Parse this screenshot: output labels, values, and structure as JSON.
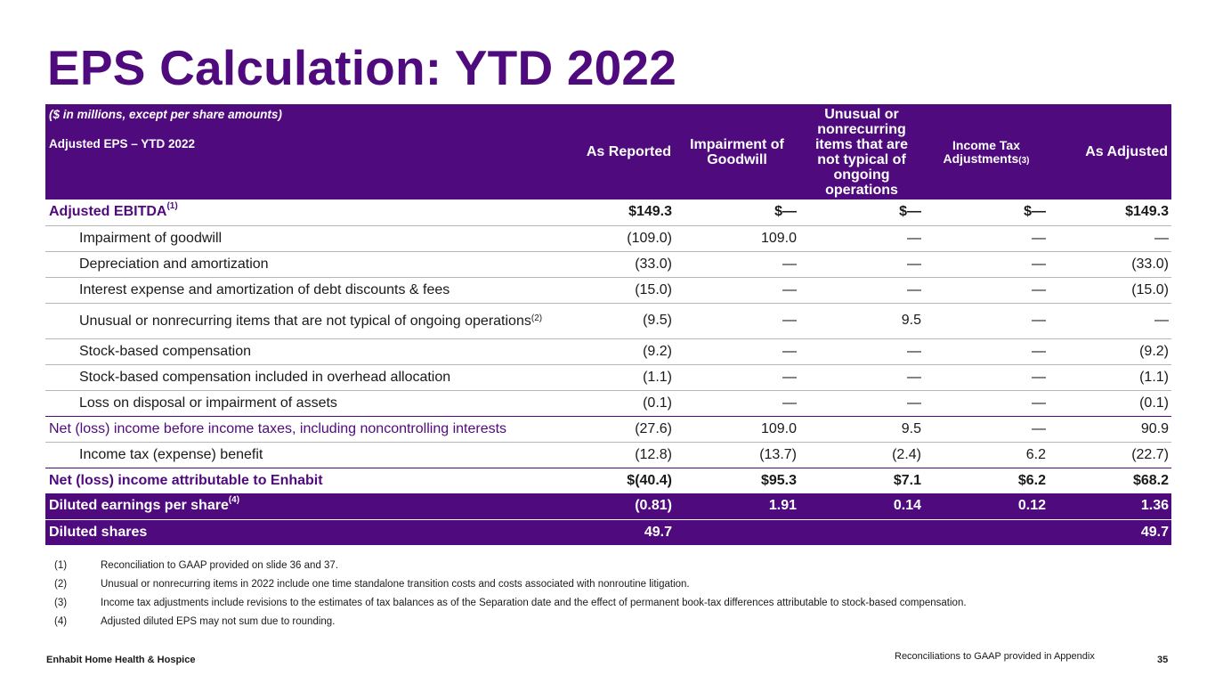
{
  "title": "EPS Calculation: YTD 2022",
  "table": {
    "units_note": "($ in millions, except per share amounts)",
    "subtitle": "Adjusted EPS – YTD 2022",
    "columns": [
      {
        "label": "As Reported"
      },
      {
        "label": "Impairment of Goodwill"
      },
      {
        "label": "Unusual or nonrecurring items that are not typical of ongoing operations"
      },
      {
        "label": "Income Tax Adjustments",
        "sup": "(3)"
      },
      {
        "label": "As Adjusted"
      }
    ],
    "rows": [
      {
        "label": "Adjusted EBITDA",
        "sup": "(1)",
        "values": [
          "$149.3",
          "$—",
          "$—",
          "$—",
          "$149.3"
        ]
      },
      {
        "label": "Impairment of goodwill",
        "values": [
          "(109.0)",
          "109.0",
          "—",
          "—",
          "—"
        ]
      },
      {
        "label": "Depreciation and amortization",
        "values": [
          "(33.0)",
          "—",
          "—",
          "—",
          "(33.0)"
        ]
      },
      {
        "label": "Interest expense and amortization of debt discounts & fees",
        "values": [
          "(15.0)",
          "—",
          "—",
          "—",
          "(15.0)"
        ]
      },
      {
        "label": "Unusual or nonrecurring items that are not typical of ongoing operations",
        "sup": "(2)",
        "values": [
          "(9.5)",
          "—",
          "9.5",
          "—",
          "—"
        ]
      },
      {
        "label": "Stock-based compensation",
        "values": [
          "(9.2)",
          "—",
          "—",
          "—",
          "(9.2)"
        ]
      },
      {
        "label": "Stock-based compensation included in overhead allocation",
        "values": [
          "(1.1)",
          "—",
          "—",
          "—",
          "(1.1)"
        ]
      },
      {
        "label": "Loss on disposal or impairment of assets",
        "values": [
          "(0.1)",
          "—",
          "—",
          "—",
          "(0.1)"
        ]
      },
      {
        "label": "Net (loss) income before income taxes, including noncontrolling interests",
        "values": [
          "(27.6)",
          "109.0",
          "9.5",
          "—",
          "90.9"
        ]
      },
      {
        "label": "Income tax (expense) benefit",
        "values": [
          "(12.8)",
          "(13.7)",
          "(2.4)",
          "6.2",
          "(22.7)"
        ]
      },
      {
        "label": "Net (loss) income attributable to Enhabit",
        "values": [
          "$(40.4)",
          "$95.3",
          "$7.1",
          "$6.2",
          "$68.2"
        ]
      },
      {
        "label": "Diluted earnings per share",
        "sup": "(4)",
        "values": [
          "(0.81)",
          "1.91",
          "0.14",
          "0.12",
          "1.36"
        ]
      },
      {
        "label": "Diluted shares",
        "values": [
          "49.7",
          "",
          "",
          "",
          "49.7"
        ]
      }
    ]
  },
  "footnotes": [
    {
      "num": "(1)",
      "text": "Reconciliation to GAAP provided on slide 36 and 37."
    },
    {
      "num": "(2)",
      "text": "Unusual or nonrecurring items in 2022 include one time standalone transition costs and costs associated with nonroutine litigation."
    },
    {
      "num": "(3)",
      "text": "Income tax adjustments include revisions to the estimates of tax balances as of the Separation date and the effect of permanent book-tax differences attributable to stock-based compensation."
    },
    {
      "num": "(4)",
      "text": "Adjusted diluted EPS may not sum due to rounding."
    }
  ],
  "footer": {
    "company": "Enhabit Home Health & Hospice",
    "note": "Reconciliations to GAAP provided in Appendix",
    "page": "35"
  },
  "colors": {
    "brand_purple": "#4f0a7d"
  }
}
